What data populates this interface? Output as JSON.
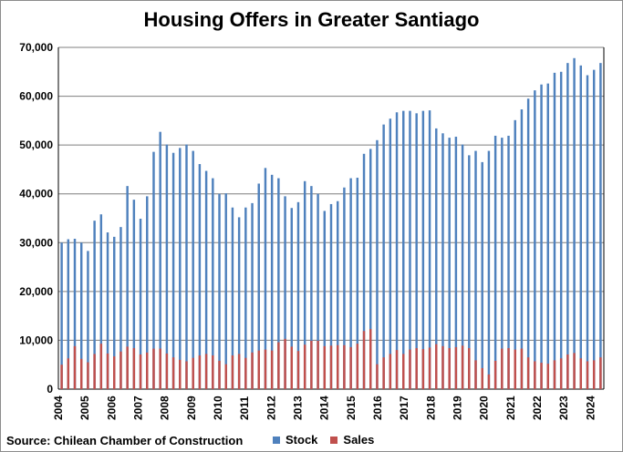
{
  "title": "Housing Offers in Greater Santiago",
  "source": "Source: Chilean Chamber of Construction",
  "colors": {
    "stock": "#4f81bd",
    "sales": "#c0504d",
    "grid": "#7f7f7f"
  },
  "chart_data": {
    "type": "bar",
    "title": "Housing Offers in Greater Santiago",
    "ylim": [
      0,
      70000
    ],
    "yticks": [
      "0",
      "10,000",
      "20,000",
      "30,000",
      "40,000",
      "50,000",
      "60,000",
      "70,000"
    ],
    "years": [
      "2004",
      "2005",
      "2006",
      "2007",
      "2008",
      "2009",
      "2010",
      "2011",
      "2012",
      "2013",
      "2014",
      "2015",
      "2016",
      "2017",
      "2018",
      "2019",
      "2020",
      "2021",
      "2022",
      "2023",
      "2024"
    ],
    "grid": true,
    "legend_position": "bottom",
    "series": [
      {
        "name": "Stock",
        "color": "#4f81bd",
        "values": [
          30000,
          30700,
          30800,
          30000,
          28300,
          34500,
          35800,
          32100,
          31200,
          33200,
          41600,
          38800,
          34900,
          39500,
          48600,
          52700,
          50100,
          48400,
          49400,
          50100,
          48800,
          46100,
          44700,
          43200,
          40000,
          40100,
          37200,
          35200,
          37200,
          38100,
          42100,
          45300,
          43900,
          43200,
          39500,
          37100,
          38300,
          42600,
          41600,
          40000,
          36500,
          37900,
          38500,
          41300,
          43200,
          43300,
          48200,
          49200,
          51000,
          54200,
          55400,
          56700,
          57000,
          57000,
          56500,
          57000,
          57100,
          53400,
          52400,
          51500,
          51700,
          50100,
          47900,
          48800,
          46500,
          48800,
          51900,
          51500,
          51900,
          55100,
          57300,
          59500,
          61200,
          62400,
          62600,
          64800,
          65000,
          66800,
          67800,
          66300,
          64300,
          65400,
          66800
        ]
      },
      {
        "name": "Sales",
        "color": "#c0504d",
        "values": [
          5000,
          6300,
          8800,
          6200,
          5500,
          7200,
          9300,
          7300,
          6700,
          7700,
          8700,
          8400,
          7100,
          7500,
          8300,
          8300,
          7300,
          6500,
          6000,
          5700,
          6400,
          6900,
          7200,
          6900,
          5800,
          5100,
          6900,
          7200,
          6400,
          7500,
          7900,
          8100,
          7900,
          9600,
          10300,
          8700,
          7800,
          9100,
          9900,
          9900,
          8800,
          8900,
          9000,
          9000,
          8600,
          9300,
          11900,
          12300,
          5100,
          6500,
          7200,
          8000,
          7200,
          8100,
          8400,
          8200,
          8500,
          9200,
          8800,
          8400,
          8600,
          8900,
          8400,
          5900,
          4300,
          3000,
          5800,
          8300,
          8400,
          8100,
          8300,
          6500,
          5700,
          5400,
          5200,
          5900,
          6300,
          7100,
          7400,
          6300,
          5700,
          5900,
          6500
        ]
      }
    ]
  }
}
